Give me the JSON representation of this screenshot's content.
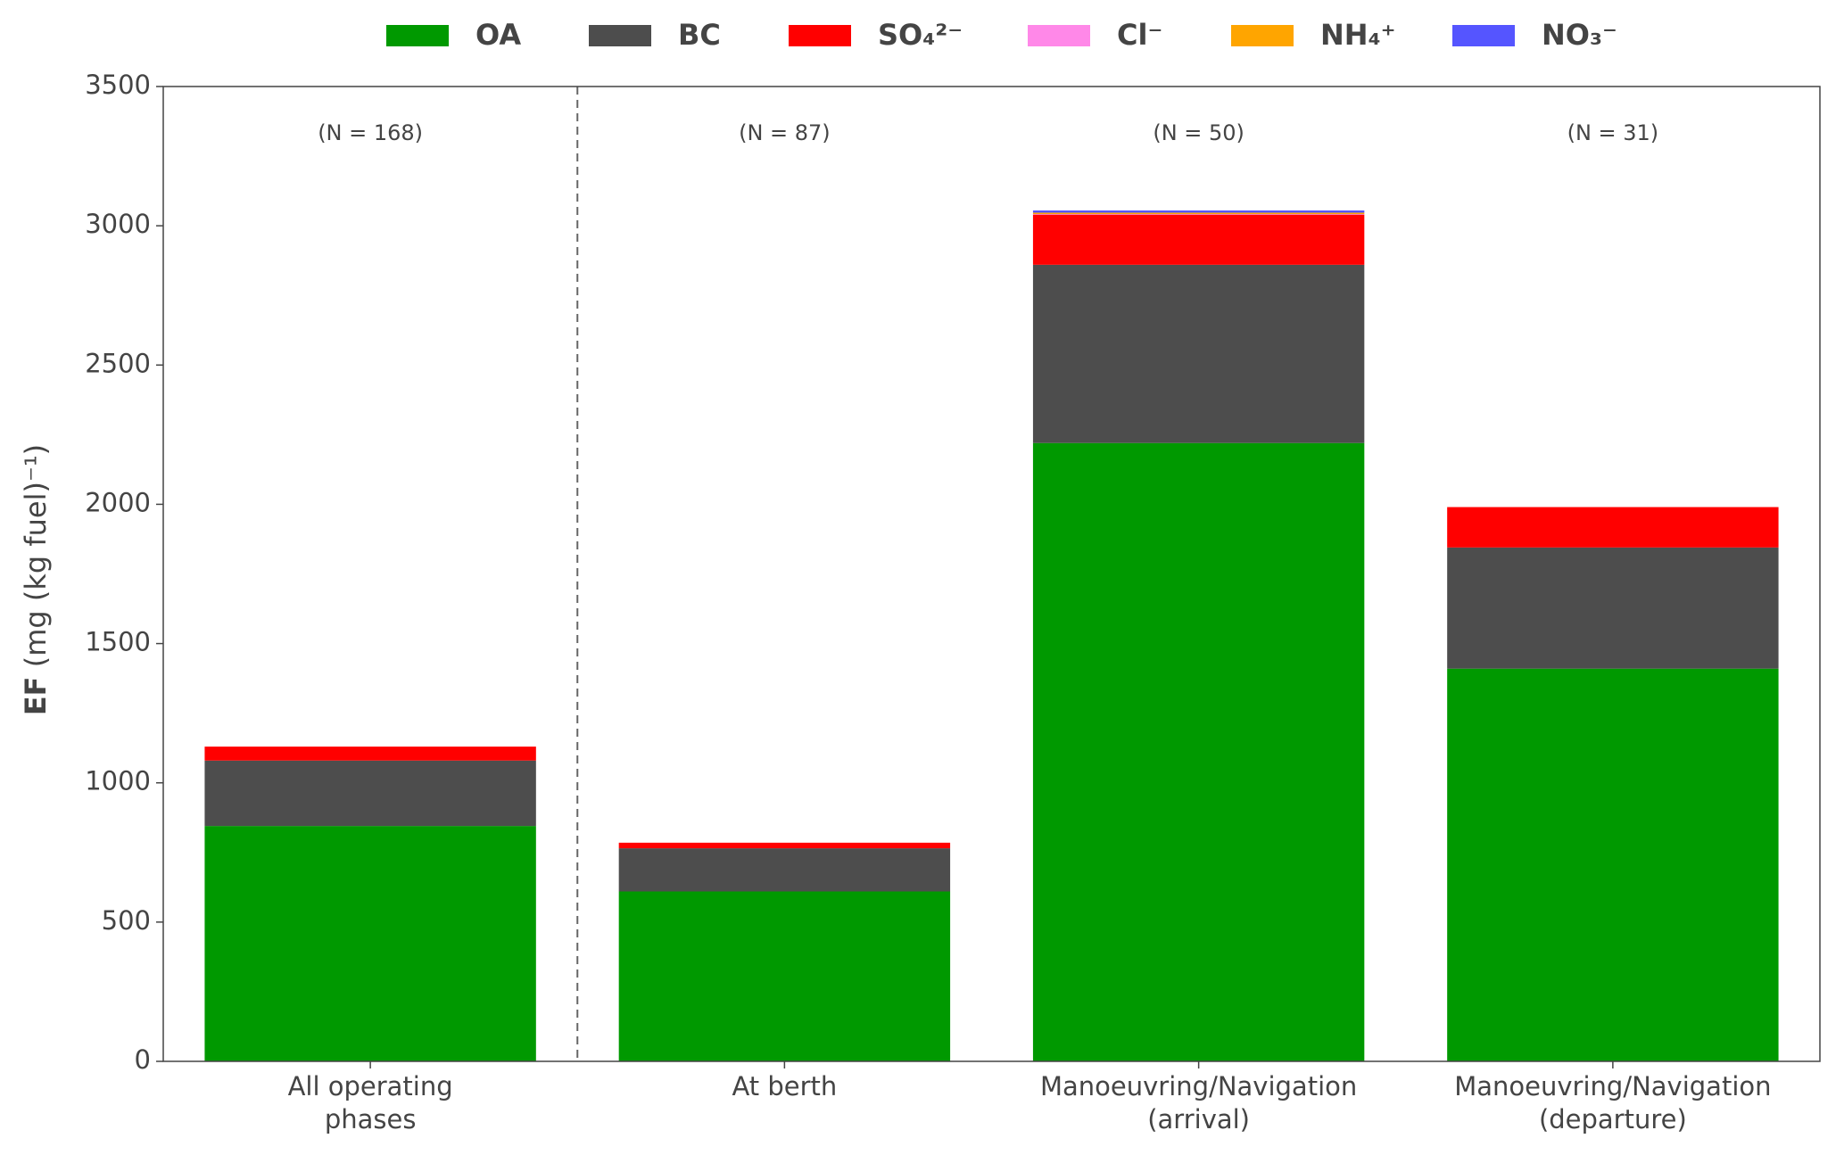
{
  "chart_data": {
    "type": "stacked_bar",
    "y_label": {
      "bold": "EF",
      "rest": "(mg (kg fuel)⁻¹)"
    },
    "categories": [
      [
        "All operating",
        "phases"
      ],
      [
        "At berth"
      ],
      [
        "Manoeuvring/Navigation",
        "(arrival)"
      ],
      [
        "Manoeuvring/Navigation",
        "(departure)"
      ]
    ],
    "annotations": [
      "(N = 168)",
      "(N = 87)",
      "(N = 50)",
      "(N = 31)"
    ],
    "series": [
      {
        "name": "OA",
        "color": "#009900",
        "values": [
          845,
          610,
          2220,
          1410
        ]
      },
      {
        "name": "BC",
        "color": "#4d4d4d",
        "values": [
          235,
          155,
          640,
          435
        ]
      },
      {
        "name": "SO₄²⁻",
        "color": "#ff0000",
        "values": [
          50,
          20,
          180,
          145
        ]
      },
      {
        "name": "Cl⁻",
        "color": "#ff88e8",
        "values": [
          0,
          0,
          2,
          0
        ]
      },
      {
        "name": "NH₄⁺",
        "color": "#ffa500",
        "values": [
          0,
          0,
          5,
          0
        ]
      },
      {
        "name": "NO₃⁻",
        "color": "#5555ff",
        "values": [
          0,
          0,
          8,
          0
        ]
      }
    ],
    "ylim": [
      0,
      3500
    ],
    "yticks": [
      0,
      500,
      1000,
      1500,
      2000,
      2500,
      3000,
      3500
    ],
    "legend": "top",
    "grid": false
  }
}
